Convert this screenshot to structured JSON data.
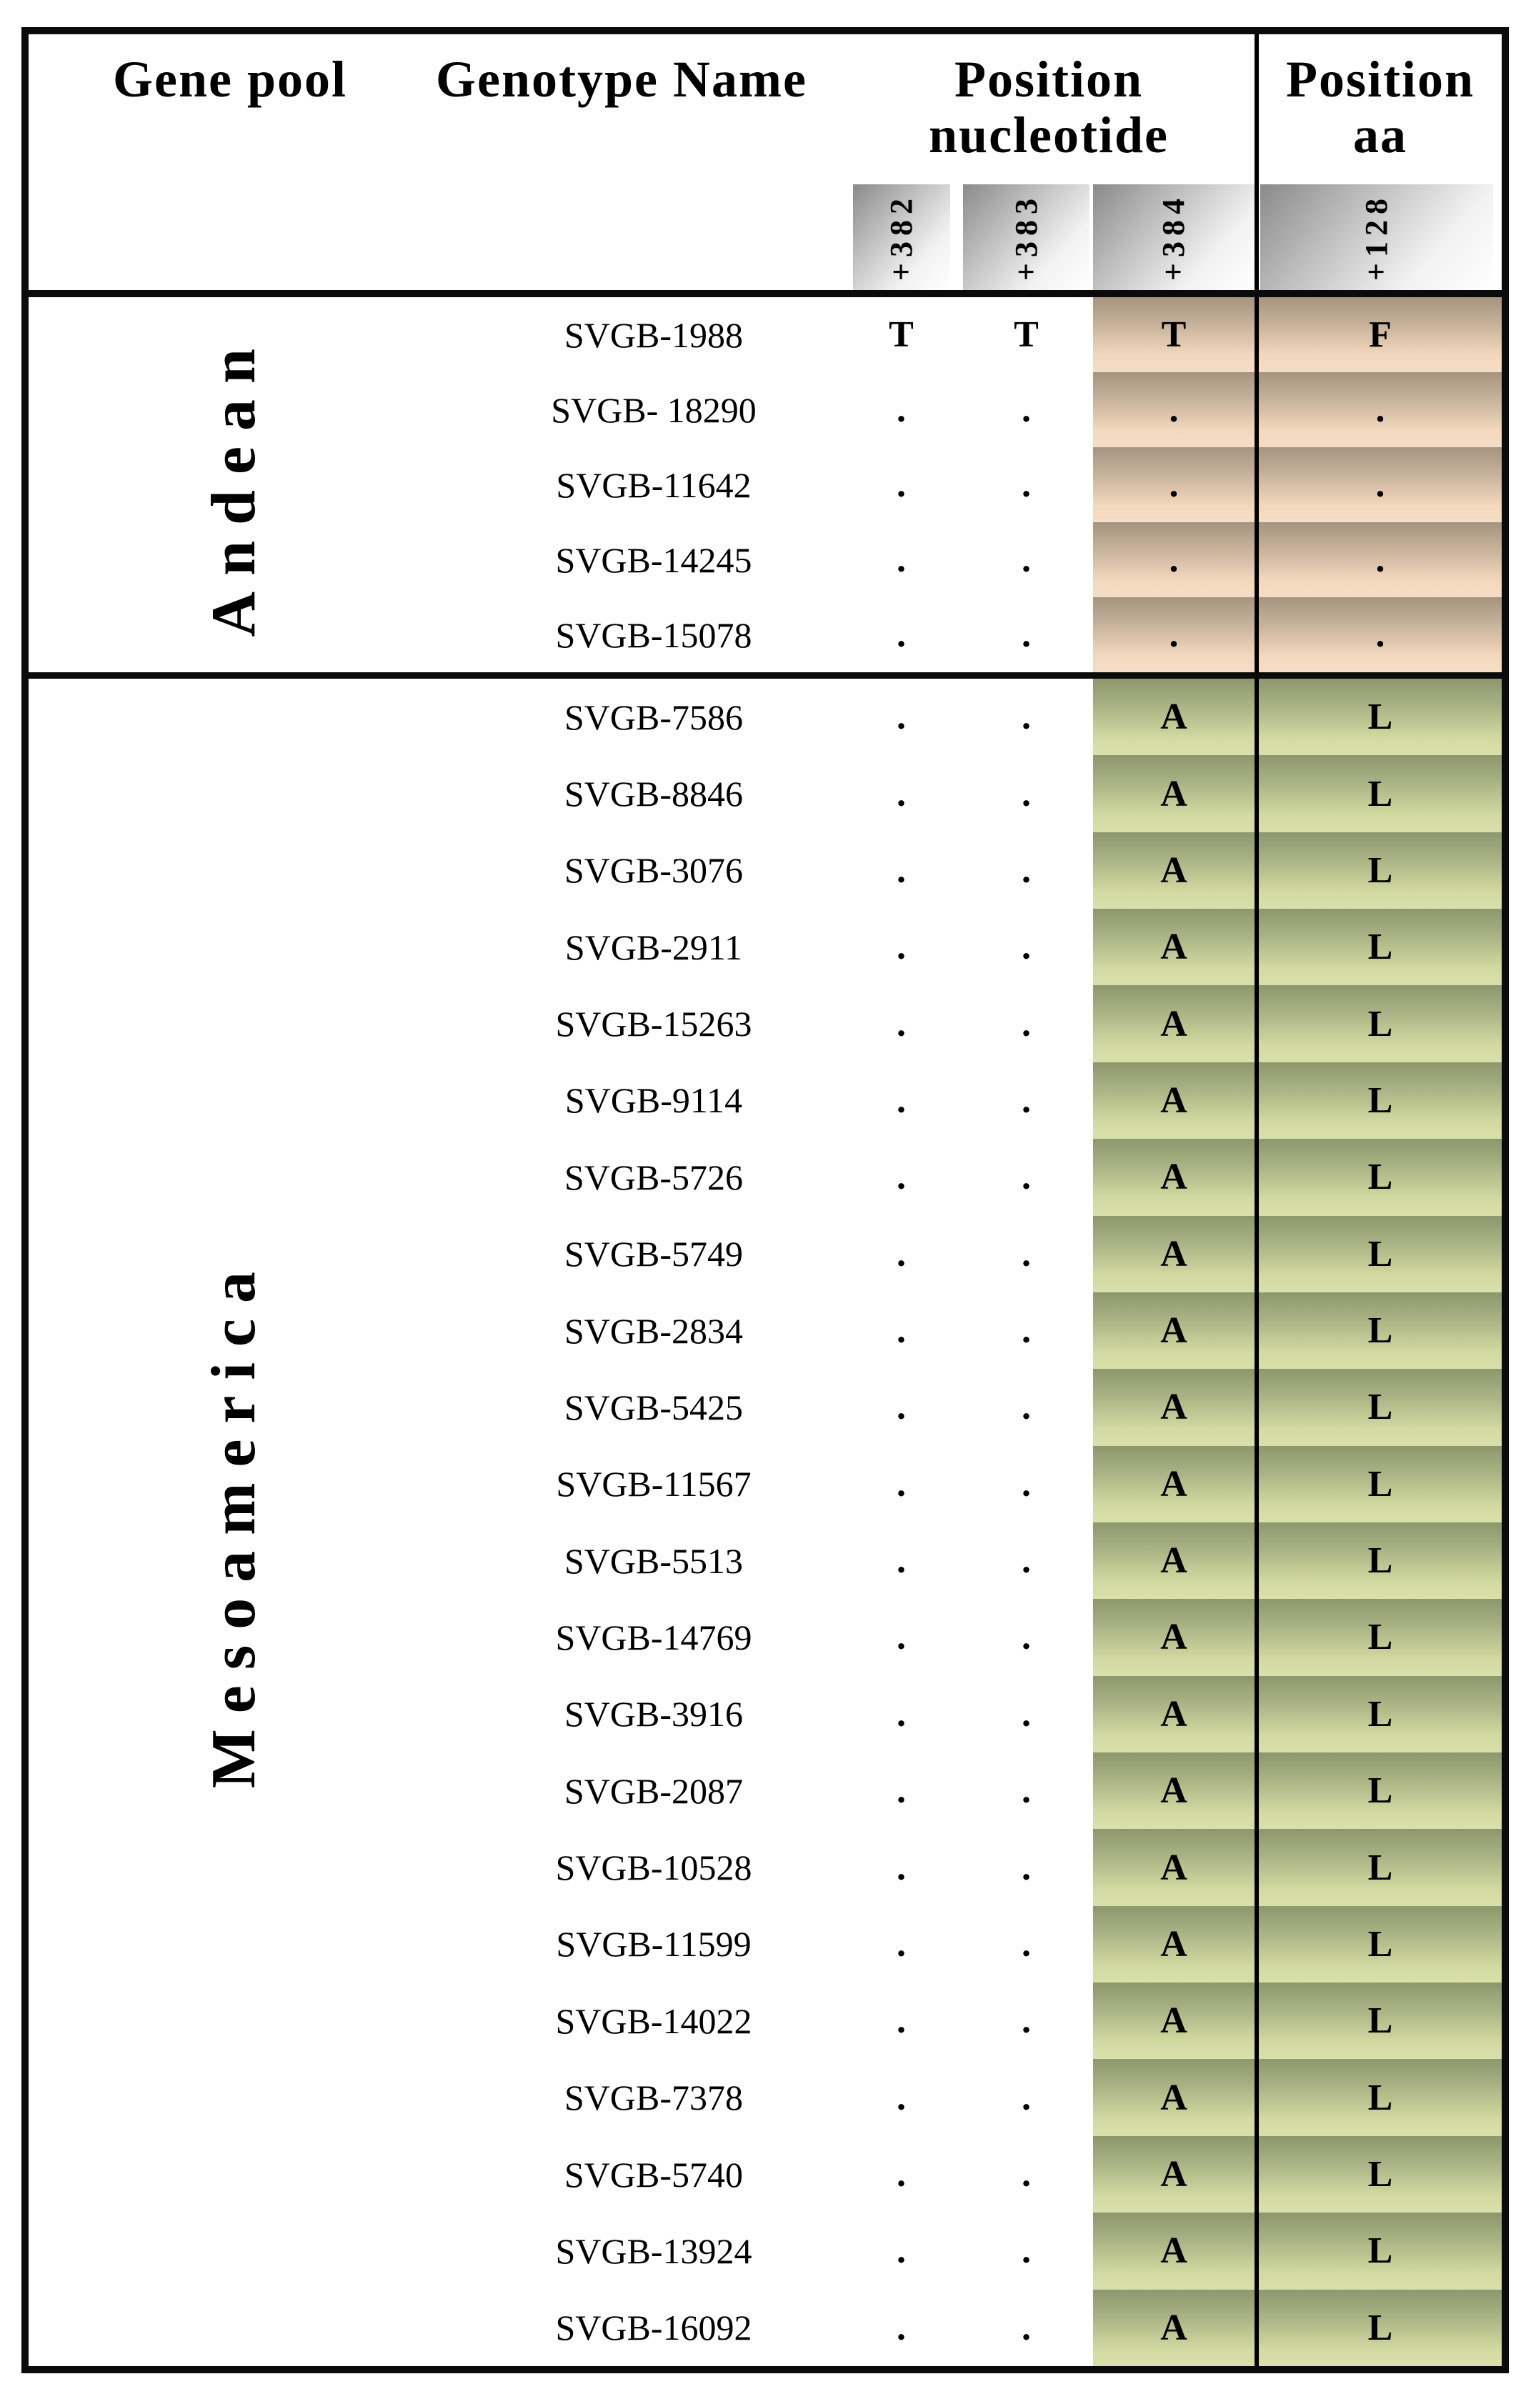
{
  "table": {
    "headers": {
      "gene_pool": "Gene pool",
      "genotype_name": "Genotype Name",
      "position_nucleotide_line1": "Position",
      "position_nucleotide_line2": "nucleotide",
      "position_aa_line1": "Position",
      "position_aa_line2": "aa"
    },
    "position_columns": {
      "n382": "+382",
      "n383": "+383",
      "n384": "+384",
      "aa128": "+128"
    },
    "sections": [
      {
        "gene_pool": "Andean",
        "accent": "tan",
        "rows": [
          {
            "name": "SVGB-1988",
            "n382": "T",
            "n383": "T",
            "n384": "T",
            "aa": "F"
          },
          {
            "name": "SVGB- 18290",
            "n382": ".",
            "n383": ".",
            "n384": ".",
            "aa": "."
          },
          {
            "name": "SVGB-11642",
            "n382": ".",
            "n383": ".",
            "n384": ".",
            "aa": "."
          },
          {
            "name": "SVGB-14245",
            "n382": ".",
            "n383": ".",
            "n384": ".",
            "aa": "."
          },
          {
            "name": "SVGB-15078",
            "n382": ".",
            "n383": ".",
            "n384": ".",
            "aa": "."
          }
        ]
      },
      {
        "gene_pool": "Mesoamerica",
        "accent": "green",
        "rows": [
          {
            "name": "SVGB-7586",
            "n382": ".",
            "n383": ".",
            "n384": "A",
            "aa": "L"
          },
          {
            "name": "SVGB-8846",
            "n382": ".",
            "n383": ".",
            "n384": "A",
            "aa": "L"
          },
          {
            "name": "SVGB-3076",
            "n382": ".",
            "n383": ".",
            "n384": "A",
            "aa": "L"
          },
          {
            "name": "SVGB-2911",
            "n382": ".",
            "n383": ".",
            "n384": "A",
            "aa": "L"
          },
          {
            "name": "SVGB-15263",
            "n382": ".",
            "n383": ".",
            "n384": "A",
            "aa": "L"
          },
          {
            "name": "SVGB-9114",
            "n382": ".",
            "n383": ".",
            "n384": "A",
            "aa": "L"
          },
          {
            "name": "SVGB-5726",
            "n382": ".",
            "n383": ".",
            "n384": "A",
            "aa": "L"
          },
          {
            "name": "SVGB-5749",
            "n382": ".",
            "n383": ".",
            "n384": "A",
            "aa": "L"
          },
          {
            "name": "SVGB-2834",
            "n382": ".",
            "n383": ".",
            "n384": "A",
            "aa": "L"
          },
          {
            "name": "SVGB-5425",
            "n382": ".",
            "n383": ".",
            "n384": "A",
            "aa": "L"
          },
          {
            "name": "SVGB-11567",
            "n382": ".",
            "n383": ".",
            "n384": "A",
            "aa": "L"
          },
          {
            "name": "SVGB-5513",
            "n382": ".",
            "n383": ".",
            "n384": "A",
            "aa": "L"
          },
          {
            "name": "SVGB-14769",
            "n382": ".",
            "n383": ".",
            "n384": "A",
            "aa": "L"
          },
          {
            "name": "SVGB-3916",
            "n382": ".",
            "n383": ".",
            "n384": "A",
            "aa": "L"
          },
          {
            "name": "SVGB-2087",
            "n382": ".",
            "n383": ".",
            "n384": "A",
            "aa": "L"
          },
          {
            "name": "SVGB-10528",
            "n382": ".",
            "n383": ".",
            "n384": "A",
            "aa": "L"
          },
          {
            "name": "SVGB-11599",
            "n382": ".",
            "n383": ".",
            "n384": "A",
            "aa": "L"
          },
          {
            "name": "SVGB-14022",
            "n382": ".",
            "n383": ".",
            "n384": "A",
            "aa": "L"
          },
          {
            "name": "SVGB-7378",
            "n382": ".",
            "n383": ".",
            "n384": "A",
            "aa": "L"
          },
          {
            "name": "SVGB-5740",
            "n382": ".",
            "n383": ".",
            "n384": "A",
            "aa": "L"
          },
          {
            "name": "SVGB-13924",
            "n382": ".",
            "n383": ".",
            "n384": "A",
            "aa": "L"
          },
          {
            "name": "SVGB-16092",
            "n382": ".",
            "n383": ".",
            "n384": "A",
            "aa": "L"
          }
        ]
      }
    ],
    "colors": {
      "border_black": "#0b0b0b",
      "header_gray_gradient": [
        "#8a8a8a",
        "#c2c2c2",
        "#f2f2f2",
        "#ffffff"
      ],
      "andean_tan_gradient": [
        "#a59480",
        "#c6b29a",
        "#f2d8bd",
        "#f5ddc6"
      ],
      "meso_green_gradient": [
        "#8d976c",
        "#aab384",
        "#d2d9a1",
        "#d9e0ab"
      ]
    }
  }
}
